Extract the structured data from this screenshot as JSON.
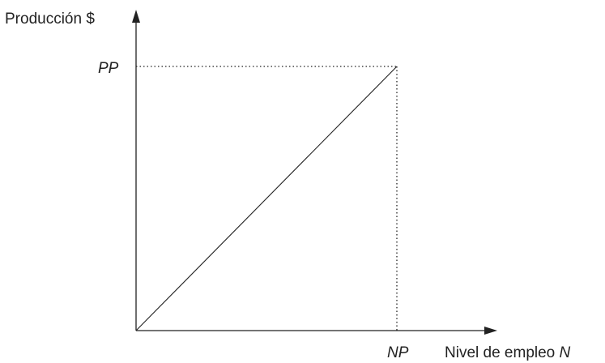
{
  "axes": {
    "y_label": "Producción $",
    "x_label_prefix": "Nivel de empleo ",
    "x_label_var": "N"
  },
  "marks": {
    "y_mark": "PP",
    "x_mark": "NP"
  },
  "colors": {
    "ink": "#222222",
    "background": "#ffffff"
  }
}
